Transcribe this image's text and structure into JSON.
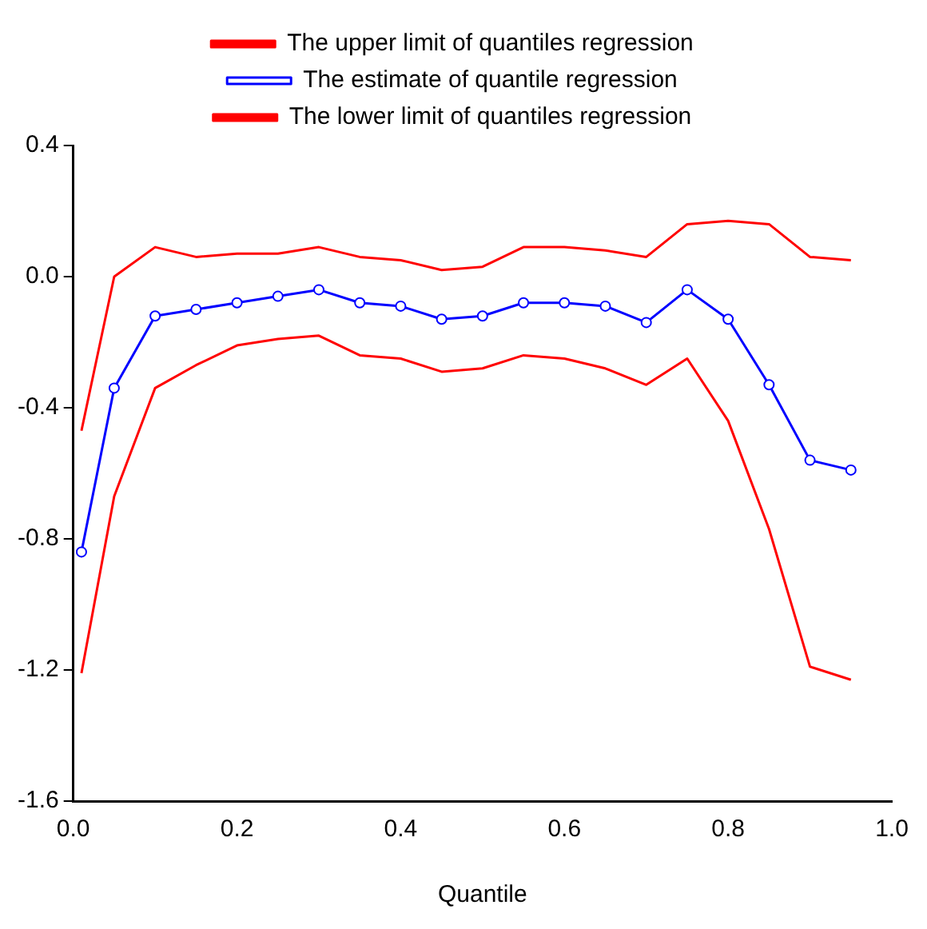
{
  "chart_data": {
    "type": "line",
    "xlabel": "Quantile",
    "x": [
      0.01,
      0.05,
      0.1,
      0.15,
      0.2,
      0.25,
      0.3,
      0.35,
      0.4,
      0.45,
      0.5,
      0.55,
      0.6,
      0.65,
      0.7,
      0.75,
      0.8,
      0.85,
      0.9,
      0.95
    ],
    "series": [
      {
        "name": "The upper limit of quantiles regression",
        "color": "#ff0000",
        "marker": "none",
        "values": [
          -0.47,
          0.0,
          0.09,
          0.06,
          0.07,
          0.07,
          0.09,
          0.06,
          0.05,
          0.02,
          0.03,
          0.09,
          0.09,
          0.08,
          0.06,
          0.16,
          0.17,
          0.16,
          0.06,
          0.05
        ]
      },
      {
        "name": "The estimate of quantile regression",
        "color": "#0000ff",
        "marker": "circle",
        "values": [
          -0.84,
          -0.34,
          -0.12,
          -0.1,
          -0.08,
          -0.06,
          -0.04,
          -0.08,
          -0.09,
          -0.13,
          -0.12,
          -0.08,
          -0.08,
          -0.09,
          -0.14,
          -0.04,
          -0.13,
          -0.33,
          -0.56,
          -0.59
        ]
      },
      {
        "name": "The lower limit of quantiles regression",
        "color": "#ff0000",
        "marker": "none",
        "values": [
          -1.21,
          -0.67,
          -0.34,
          -0.27,
          -0.21,
          -0.19,
          -0.18,
          -0.24,
          -0.25,
          -0.29,
          -0.28,
          -0.24,
          -0.25,
          -0.28,
          -0.33,
          -0.25,
          -0.44,
          -0.77,
          -1.19,
          -1.23
        ]
      }
    ],
    "xlim": [
      0,
      1
    ],
    "xticks": [
      {
        "value": 0,
        "label": "0.0"
      },
      0.2,
      0.4,
      0.6,
      0.8,
      {
        "value": 1,
        "label": "1.0"
      }
    ],
    "ylim": [
      -1.6,
      0.4
    ],
    "yticks": [
      {
        "value": -1.6,
        "label": "-1.6"
      },
      {
        "value": -1.2,
        "label": "-1.2"
      },
      {
        "value": -0.8,
        "label": "-0.8"
      },
      {
        "value": -0.4,
        "label": "-0.4"
      },
      {
        "value": 0,
        "label": "0.0"
      },
      {
        "value": 0.4,
        "label": "0.4"
      }
    ],
    "grid": false,
    "legend": "top",
    "line_style": "solid"
  }
}
